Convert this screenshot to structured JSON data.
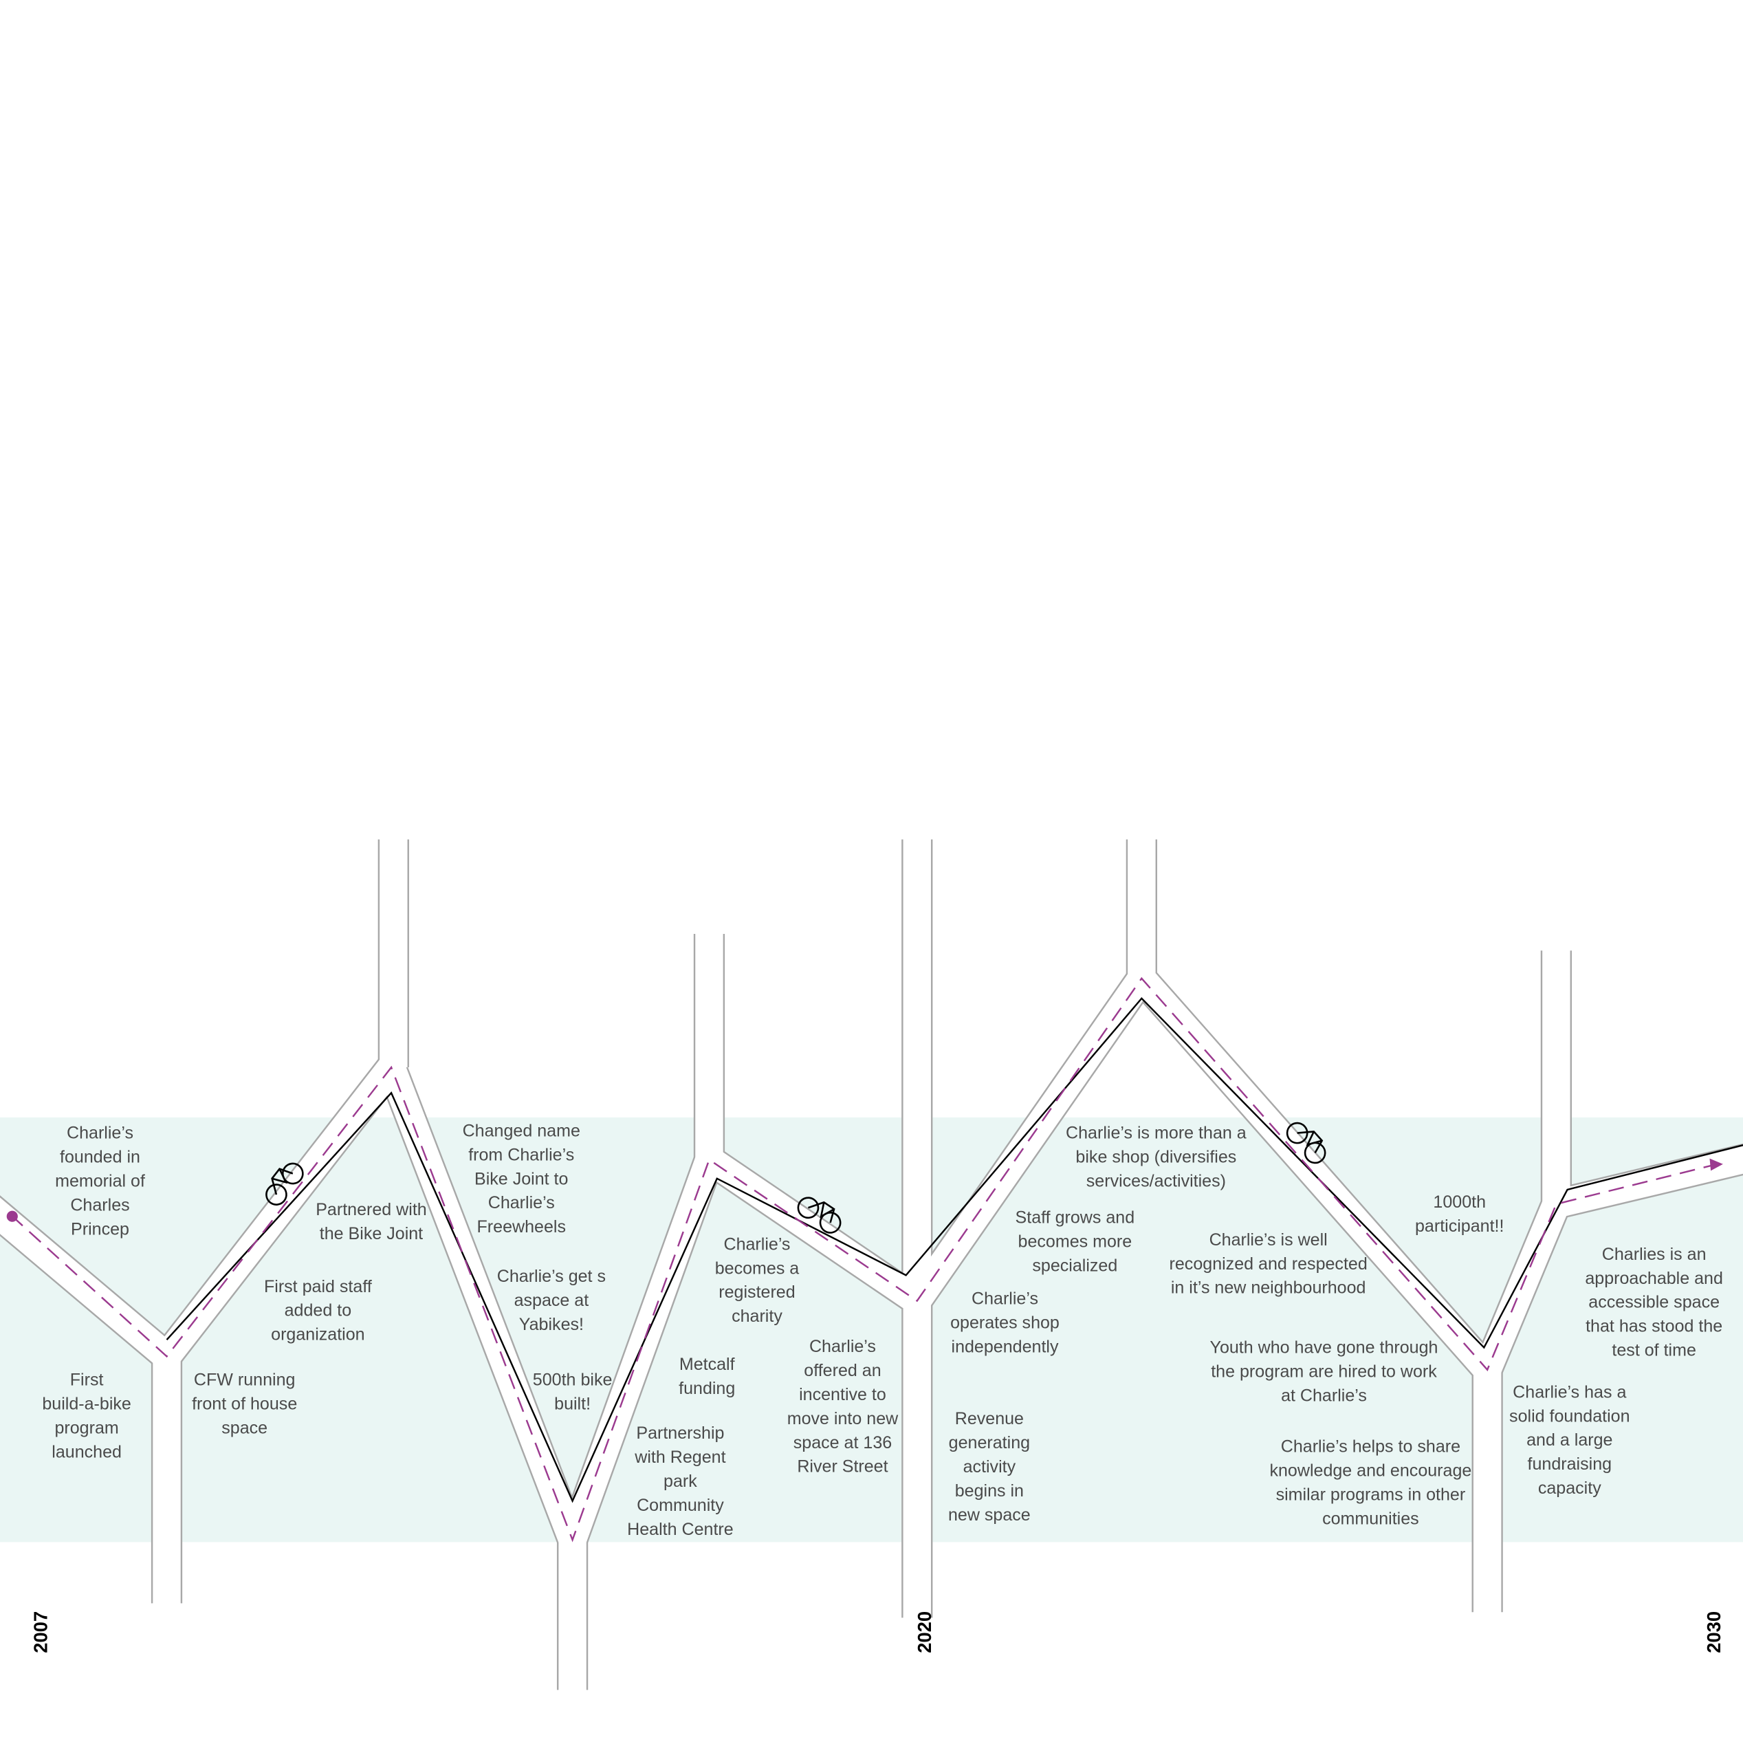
{
  "years": [
    "2007",
    "2020",
    "2030"
  ],
  "events": [
    {
      "lines": [
        "Charlie’s",
        "founded in",
        "memorial of",
        "Charles",
        "Princep"
      ]
    },
    {
      "lines": [
        "First",
        "build-a-bike",
        "program",
        "launched"
      ]
    },
    {
      "lines": [
        "CFW running",
        "front of house",
        "space"
      ]
    },
    {
      "lines": [
        "First paid staff",
        "added to",
        "organization"
      ]
    },
    {
      "lines": [
        "Partnered with",
        "the Bike Joint"
      ]
    },
    {
      "lines": [
        "Changed name",
        "from Charlie’s",
        "Bike Joint to",
        "Charlie’s",
        "Freewheels"
      ]
    },
    {
      "lines": [
        "Charlie’s get s",
        "aspace at",
        "Yabikes!"
      ]
    },
    {
      "lines": [
        "500th bike",
        "built!"
      ]
    },
    {
      "lines": [
        "Metcalf",
        "funding"
      ]
    },
    {
      "lines": [
        "Partnership",
        "with Regent",
        "park",
        "Community",
        "Health Centre"
      ]
    },
    {
      "lines": [
        "Charlie’s",
        "becomes a",
        "registered",
        "charity"
      ]
    },
    {
      "lines": [
        "Charlie’s",
        "offered an",
        "incentive to",
        "move into new",
        "space at 136",
        "River Street"
      ]
    },
    {
      "lines": [
        "Charlie’s",
        "operates shop",
        "independently"
      ]
    },
    {
      "lines": [
        "Revenue",
        "generating",
        "activity",
        "begins in",
        "new space"
      ]
    },
    {
      "lines": [
        "Staff grows and",
        "becomes more",
        "specialized"
      ]
    },
    {
      "lines": [
        "Charlie’s is more than a",
        "bike shop (diversifies",
        "services/activities)"
      ]
    },
    {
      "lines": [
        "Charlie’s is well",
        "recognized and respected",
        "in it’s new neighbourhood"
      ]
    },
    {
      "lines": [
        "Youth who have gone through",
        "the program are hired to work",
        "at Charlie’s"
      ]
    },
    {
      "lines": [
        "Charlie’s helps to share",
        "knowledge and encourage",
        "similar programs in other",
        "communities"
      ]
    },
    {
      "lines": [
        "1000th",
        "participant!!"
      ]
    },
    {
      "lines": [
        "Charlie’s has a",
        "solid foundation",
        "and a large",
        "fundraising",
        "capacity"
      ]
    },
    {
      "lines": [
        "Charlies is an",
        "approachable and",
        "accessible space",
        "that has stood the",
        "test of time"
      ]
    }
  ]
}
